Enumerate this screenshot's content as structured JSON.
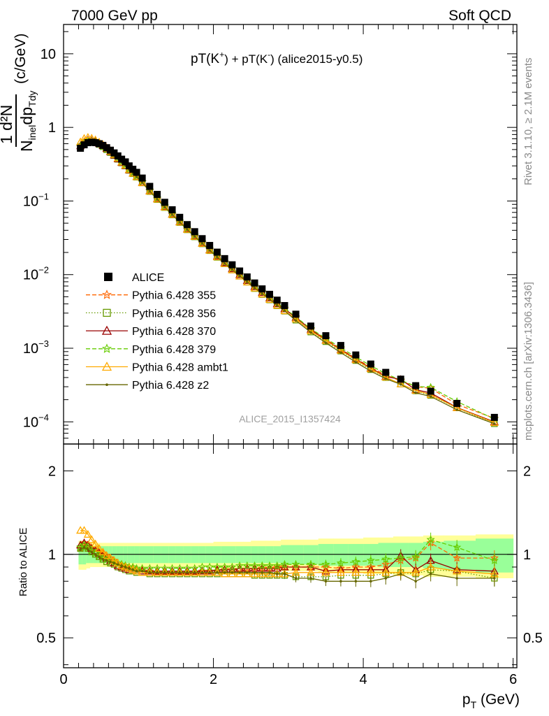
{
  "header": {
    "left": "7000 GeV pp",
    "right": "Soft QCD"
  },
  "side_labels": {
    "rivet": "Rivet 3.1.10, ≥ 2.1M events",
    "mcplots": "mcplots.cern.ch [arXiv:1306.3436]"
  },
  "chart_data": [
    {
      "type": "scatter",
      "panel": "main",
      "title_parts": {
        "a": "pT(K",
        "a_sup": "+",
        "b": ") + pT(K",
        "b_sup": "-",
        "c": ") (alice2015-y0.5)"
      },
      "ylabel_parts": {
        "num": "1  d²N",
        "den": "N",
        "den_sub": "inel",
        "den_mid": "dp",
        "den_sub2": "Tdy",
        "unit": "(c/GeV)"
      },
      "watermark": "ALICE_2015_I1357424",
      "xlim": [
        0,
        6.05
      ],
      "ylim": [
        5e-05,
        25
      ],
      "yscale": "log",
      "y_ticks": [
        {
          "v": 0.0001,
          "base": "10",
          "exp": "−4"
        },
        {
          "v": 0.001,
          "base": "10",
          "exp": "−3"
        },
        {
          "v": 0.01,
          "base": "10",
          "exp": "−2"
        },
        {
          "v": 0.1,
          "base": "10",
          "exp": "−1"
        },
        {
          "v": 1,
          "base": "1",
          "exp": ""
        },
        {
          "v": 10,
          "base": "10",
          "exp": ""
        }
      ],
      "x": [
        0.225,
        0.275,
        0.325,
        0.375,
        0.425,
        0.475,
        0.525,
        0.575,
        0.625,
        0.675,
        0.725,
        0.775,
        0.825,
        0.875,
        0.925,
        0.975,
        1.05,
        1.15,
        1.25,
        1.35,
        1.45,
        1.55,
        1.65,
        1.75,
        1.85,
        1.95,
        2.05,
        2.15,
        2.25,
        2.35,
        2.45,
        2.55,
        2.65,
        2.75,
        2.85,
        2.95,
        3.1,
        3.3,
        3.5,
        3.7,
        3.9,
        4.1,
        4.3,
        4.5,
        4.7,
        4.9,
        5.25,
        5.75
      ],
      "data": [
        0.52,
        0.58,
        0.62,
        0.63,
        0.62,
        0.6,
        0.57,
        0.53,
        0.49,
        0.45,
        0.41,
        0.37,
        0.34,
        0.3,
        0.27,
        0.245,
        0.205,
        0.158,
        0.123,
        0.096,
        0.076,
        0.06,
        0.0478,
        0.0383,
        0.0308,
        0.0249,
        0.0202,
        0.0165,
        0.0136,
        0.0112,
        0.0093,
        0.0077,
        0.0064,
        0.0054,
        0.0045,
        0.0038,
        0.0029,
        0.002,
        0.00148,
        0.00109,
        0.00081,
        0.00061,
        0.00047,
        0.00038,
        0.00031,
        0.00026,
        0.000178,
        0.000115
      ],
      "legend": [
        "ALICE",
        "Pythia 6.428 355",
        "Pythia 6.428 356",
        "Pythia 6.428 370",
        "Pythia 6.428 379",
        "Pythia 6.428 ambt1",
        "Pythia 6.428 z2"
      ],
      "series": [
        {
          "name": "Pythia 6.428 355",
          "color": "#ff6600",
          "dash": "6,3",
          "marker": "star",
          "ratio": [
            1.05,
            1.1,
            1.08,
            1.05,
            1.04,
            1.02,
            1.01,
            0.99,
            0.97,
            0.95,
            0.93,
            0.92,
            0.91,
            0.9,
            0.89,
            0.88,
            0.88,
            0.87,
            0.86,
            0.86,
            0.86,
            0.86,
            0.86,
            0.86,
            0.87,
            0.87,
            0.87,
            0.88,
            0.88,
            0.88,
            0.88,
            0.88,
            0.89,
            0.89,
            0.9,
            0.9,
            0.9,
            0.9,
            0.9,
            0.89,
            0.9,
            0.9,
            0.92,
            0.95,
            0.97,
            1.1,
            0.97,
            0.97
          ]
        },
        {
          "name": "Pythia 6.428 356",
          "color": "#669900",
          "dash": "1.5,2.5",
          "marker": "square",
          "ratio": [
            1.05,
            1.07,
            1.05,
            1.02,
            1.0,
            0.98,
            0.96,
            0.94,
            0.93,
            0.92,
            0.9,
            0.89,
            0.88,
            0.87,
            0.87,
            0.86,
            0.86,
            0.85,
            0.85,
            0.85,
            0.85,
            0.85,
            0.85,
            0.85,
            0.85,
            0.85,
            0.85,
            0.85,
            0.85,
            0.85,
            0.85,
            0.84,
            0.84,
            0.84,
            0.84,
            0.84,
            0.83,
            0.83,
            0.83,
            0.84,
            0.84,
            0.84,
            0.85,
            0.86,
            0.85,
            0.88,
            0.87,
            0.82
          ]
        },
        {
          "name": "Pythia 6.428 370",
          "color": "#990000",
          "dash": "",
          "marker": "triangle",
          "ratio": [
            1.08,
            1.1,
            1.08,
            1.05,
            1.03,
            1.01,
            0.99,
            0.97,
            0.95,
            0.93,
            0.91,
            0.9,
            0.89,
            0.88,
            0.88,
            0.87,
            0.87,
            0.87,
            0.87,
            0.87,
            0.87,
            0.87,
            0.87,
            0.87,
            0.87,
            0.87,
            0.88,
            0.88,
            0.88,
            0.89,
            0.89,
            0.89,
            0.89,
            0.89,
            0.89,
            0.9,
            0.9,
            0.9,
            0.87,
            0.88,
            0.88,
            0.88,
            0.88,
            0.99,
            0.88,
            0.95,
            0.88,
            0.87
          ]
        },
        {
          "name": "Pythia 6.428 379",
          "color": "#66cc00",
          "dash": "6,3",
          "marker": "star",
          "ratio": [
            1.06,
            1.08,
            1.06,
            1.03,
            1.01,
            0.99,
            0.97,
            0.96,
            0.95,
            0.94,
            0.93,
            0.92,
            0.91,
            0.9,
            0.9,
            0.89,
            0.89,
            0.89,
            0.89,
            0.89,
            0.89,
            0.89,
            0.89,
            0.89,
            0.9,
            0.9,
            0.9,
            0.9,
            0.9,
            0.91,
            0.91,
            0.91,
            0.91,
            0.91,
            0.91,
            0.92,
            0.92,
            0.92,
            0.92,
            0.93,
            0.94,
            0.95,
            0.96,
            0.97,
            0.98,
            1.13,
            1.06,
            0.95
          ]
        },
        {
          "name": "Pythia 6.428 ambt1",
          "color": "#ffaa00",
          "dash": "",
          "marker": "triangle",
          "ratio": [
            1.22,
            1.22,
            1.18,
            1.13,
            1.09,
            1.05,
            1.02,
            0.99,
            0.97,
            0.95,
            0.93,
            0.91,
            0.9,
            0.89,
            0.88,
            0.87,
            0.86,
            0.86,
            0.86,
            0.86,
            0.86,
            0.86,
            0.86,
            0.86,
            0.86,
            0.86,
            0.86,
            0.85,
            0.85,
            0.85,
            0.85,
            0.85,
            0.85,
            0.85,
            0.85,
            0.85,
            0.86,
            0.86,
            0.86,
            0.86,
            0.86,
            0.86,
            0.86,
            0.86,
            0.86,
            0.9,
            0.87,
            0.85
          ]
        },
        {
          "name": "Pythia 6.428 z2",
          "color": "#666600",
          "dash": "",
          "marker": "dot",
          "ratio": [
            1.04,
            1.06,
            1.04,
            1.02,
            1.0,
            0.98,
            0.96,
            0.95,
            0.94,
            0.93,
            0.92,
            0.91,
            0.9,
            0.89,
            0.88,
            0.87,
            0.87,
            0.86,
            0.86,
            0.86,
            0.86,
            0.86,
            0.86,
            0.86,
            0.86,
            0.86,
            0.86,
            0.86,
            0.86,
            0.86,
            0.86,
            0.86,
            0.86,
            0.86,
            0.85,
            0.85,
            0.82,
            0.82,
            0.8,
            0.8,
            0.8,
            0.8,
            0.82,
            0.85,
            0.8,
            0.85,
            0.82,
            0.82
          ]
        }
      ]
    },
    {
      "type": "scatter",
      "panel": "ratio",
      "ylabel": "Ratio to ALICE",
      "xlabel": "p",
      "xlabel_sub": "T",
      "xlabel_unit": " (GeV)",
      "xlim": [
        0,
        6.05
      ],
      "ylim": [
        0.39,
        2.5
      ],
      "yscale": "log",
      "y_ticks": [
        {
          "v": 0.5,
          "label": "0.5"
        },
        {
          "v": 1,
          "label": "1"
        },
        {
          "v": 2,
          "label": "2"
        }
      ],
      "x_ticks": [
        {
          "v": 0,
          "label": "0"
        },
        {
          "v": 2,
          "label": "2"
        },
        {
          "v": 4,
          "label": "4"
        },
        {
          "v": 6,
          "label": "6"
        }
      ],
      "band_inner": [
        0.08,
        0.08,
        0.07,
        0.07,
        0.07,
        0.07,
        0.07,
        0.07,
        0.07,
        0.07,
        0.07,
        0.07,
        0.07,
        0.07,
        0.07,
        0.07,
        0.07,
        0.07,
        0.07,
        0.07,
        0.07,
        0.07,
        0.07,
        0.07,
        0.07,
        0.07,
        0.07,
        0.07,
        0.07,
        0.07,
        0.07,
        0.07,
        0.07,
        0.07,
        0.07,
        0.08,
        0.08,
        0.08,
        0.09,
        0.09,
        0.09,
        0.09,
        0.1,
        0.1,
        0.1,
        0.11,
        0.12,
        0.14
      ],
      "band_outer": [
        0.12,
        0.12,
        0.11,
        0.1,
        0.1,
        0.1,
        0.1,
        0.1,
        0.1,
        0.1,
        0.1,
        0.1,
        0.1,
        0.1,
        0.1,
        0.1,
        0.1,
        0.1,
        0.1,
        0.1,
        0.1,
        0.1,
        0.1,
        0.1,
        0.1,
        0.1,
        0.11,
        0.11,
        0.11,
        0.11,
        0.11,
        0.12,
        0.12,
        0.12,
        0.12,
        0.13,
        0.13,
        0.13,
        0.14,
        0.14,
        0.14,
        0.15,
        0.15,
        0.16,
        0.16,
        0.17,
        0.17,
        0.18
      ]
    }
  ]
}
